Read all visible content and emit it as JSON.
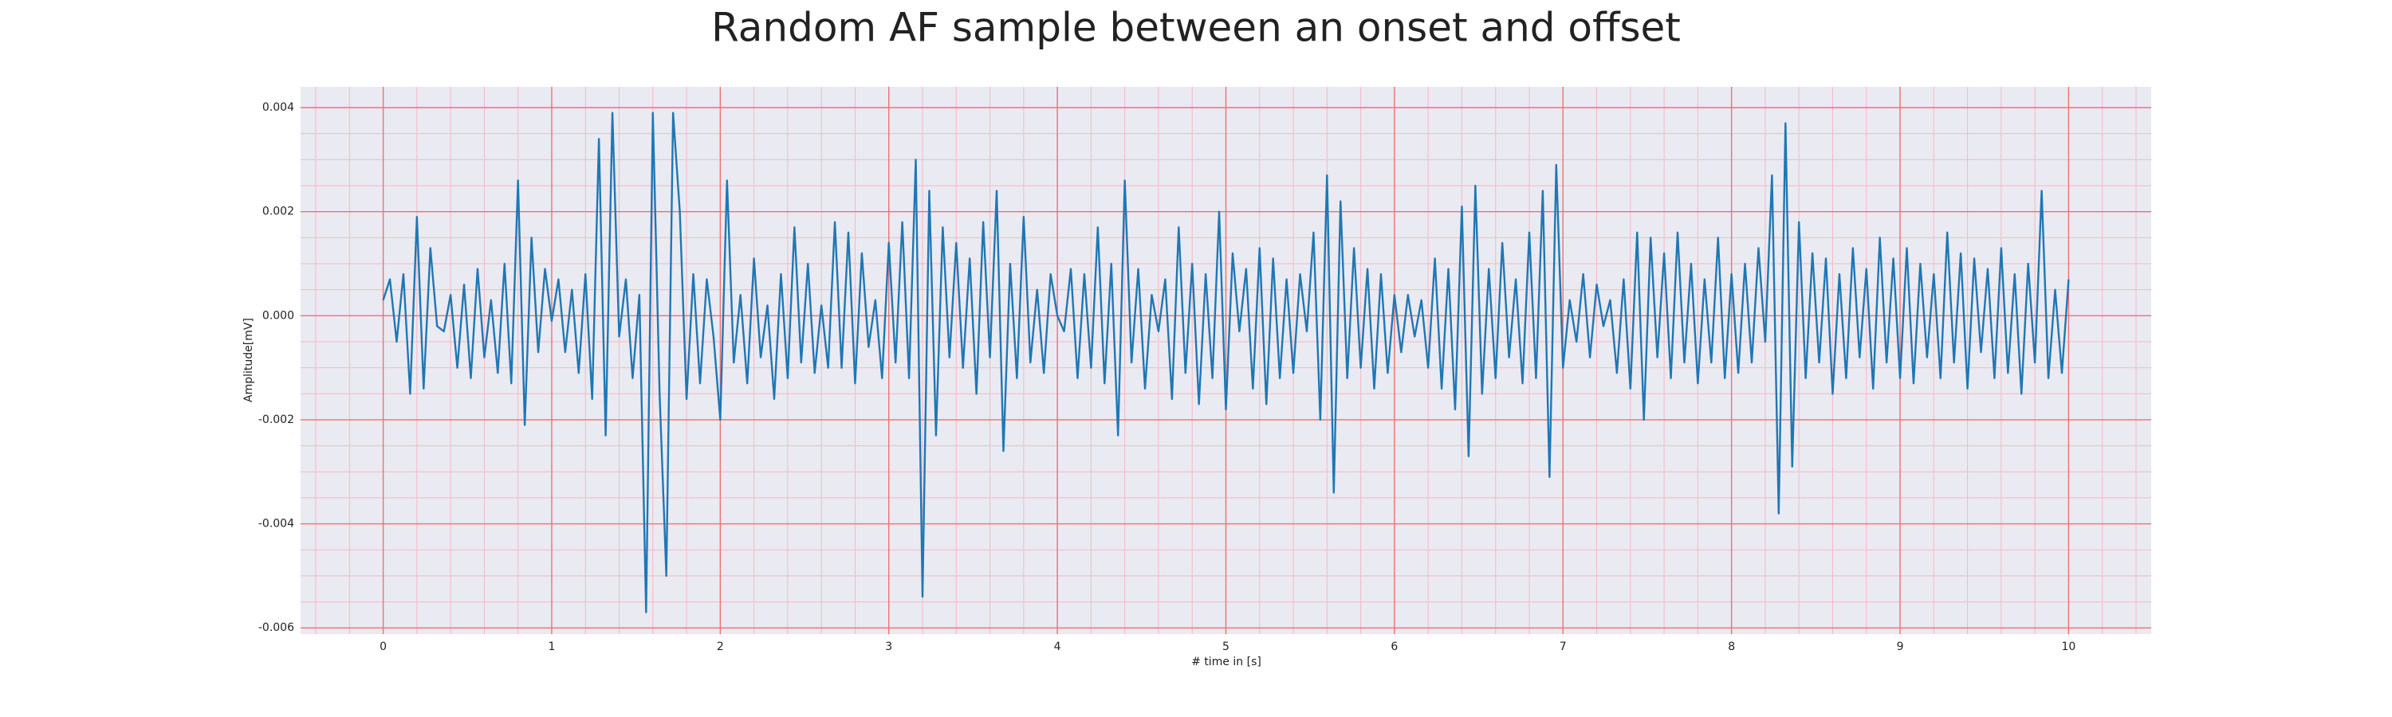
{
  "chart_data": {
    "type": "line",
    "title": "Random AF sample between an onset and offset",
    "xlabel": "# time in [s]",
    "ylabel": "Amplitude[mV]",
    "color": "#1f77b4",
    "grid": true,
    "xlim": [
      -0.49,
      10.49
    ],
    "ylim": [
      -0.00612,
      0.0044
    ],
    "xticks": [
      0,
      1,
      2,
      3,
      4,
      5,
      6,
      7,
      8,
      9,
      10
    ],
    "yticks": [
      -0.006,
      -0.004,
      -0.002,
      {
        "value": 0,
        "label": "0.000"
      },
      0.002,
      0.004
    ],
    "x": [
      0,
      0.04,
      0.08,
      0.12,
      0.16,
      0.2,
      0.24,
      0.28,
      0.32,
      0.36,
      0.4,
      0.44,
      0.48,
      0.52,
      0.56,
      0.6,
      0.64,
      0.68,
      0.72,
      0.76,
      0.8,
      0.84,
      0.88,
      0.92,
      0.96,
      1,
      1.04,
      1.08,
      1.12,
      1.16,
      1.2,
      1.24,
      1.28,
      1.32,
      1.36,
      1.4,
      1.44,
      1.48,
      1.52,
      1.56,
      1.6,
      1.64,
      1.68,
      1.72,
      1.76,
      1.8,
      1.84,
      1.88,
      1.92,
      1.96,
      2,
      2.04,
      2.08,
      2.12,
      2.16,
      2.2,
      2.24,
      2.28,
      2.32,
      2.36,
      2.4,
      2.44,
      2.48,
      2.52,
      2.56,
      2.6,
      2.64,
      2.68,
      2.72,
      2.76,
      2.8,
      2.84,
      2.88,
      2.92,
      2.96,
      3,
      3.04,
      3.08,
      3.12,
      3.16,
      3.2,
      3.24,
      3.28,
      3.32,
      3.36,
      3.4,
      3.44,
      3.48,
      3.52,
      3.56,
      3.6,
      3.64,
      3.68,
      3.72,
      3.76,
      3.8,
      3.84,
      3.88,
      3.92,
      3.96,
      4,
      4.04,
      4.08,
      4.12,
      4.16,
      4.2,
      4.24,
      4.28,
      4.32,
      4.36,
      4.4,
      4.44,
      4.48,
      4.52,
      4.56,
      4.6,
      4.64,
      4.68,
      4.72,
      4.76,
      4.8,
      4.84,
      4.88,
      4.92,
      4.96,
      5,
      5.04,
      5.08,
      5.12,
      5.16,
      5.2,
      5.24,
      5.28,
      5.32,
      5.36,
      5.4,
      5.44,
      5.48,
      5.52,
      5.56,
      5.6,
      5.64,
      5.68,
      5.72,
      5.76,
      5.8,
      5.84,
      5.88,
      5.92,
      5.96,
      6,
      6.04,
      6.08,
      6.12,
      6.16,
      6.2,
      6.24,
      6.28,
      6.32,
      6.36,
      6.4,
      6.44,
      6.48,
      6.52,
      6.56,
      6.6,
      6.64,
      6.68,
      6.72,
      6.76,
      6.8,
      6.84,
      6.88,
      6.92,
      6.96,
      7,
      7.04,
      7.08,
      7.12,
      7.16,
      7.2,
      7.24,
      7.28,
      7.32,
      7.36,
      7.4,
      7.44,
      7.48,
      7.52,
      7.56,
      7.6,
      7.64,
      7.68,
      7.72,
      7.76,
      7.8,
      7.84,
      7.88,
      7.92,
      7.96,
      8,
      8.04,
      8.08,
      8.12,
      8.16,
      8.2,
      8.24,
      8.28,
      8.32,
      8.36,
      8.4,
      8.44,
      8.48,
      8.52,
      8.56,
      8.6,
      8.64,
      8.68,
      8.72,
      8.76,
      8.8,
      8.84,
      8.88,
      8.92,
      8.96,
      9,
      9.04,
      9.08,
      9.12,
      9.16,
      9.2,
      9.24,
      9.28,
      9.32,
      9.36,
      9.4,
      9.44,
      9.48,
      9.52,
      9.56,
      9.6,
      9.64,
      9.68,
      9.72,
      9.76,
      9.8,
      9.84,
      9.88,
      9.92,
      9.96,
      10
    ],
    "values": [
      0.0003,
      0.0007,
      -0.0005,
      0.0008,
      -0.0015,
      0.0019,
      -0.0014,
      0.0013,
      -0.0002,
      -0.0003,
      0.0004,
      -0.001,
      0.0006,
      -0.0012,
      0.0009,
      -0.0008,
      0.0003,
      -0.0011,
      0.001,
      -0.0013,
      0.0026,
      -0.0021,
      0.0015,
      -0.0007,
      0.0009,
      -0.0001,
      0.0007,
      -0.0007,
      0.0005,
      -0.0011,
      0.0008,
      -0.0016,
      0.0034,
      -0.0023,
      0.0039,
      -0.0004,
      0.0007,
      -0.0012,
      0.0004,
      -0.0057,
      0.0039,
      -0.0015,
      -0.005,
      0.0039,
      0.002,
      -0.0016,
      0.0008,
      -0.0013,
      0.0007,
      -0.0004,
      -0.002,
      0.0026,
      -0.0009,
      0.0004,
      -0.0013,
      0.0011,
      -0.0008,
      0.0002,
      -0.0016,
      0.0008,
      -0.0012,
      0.0017,
      -0.0009,
      0.001,
      -0.0011,
      0.0002,
      -0.001,
      0.0018,
      -0.001,
      0.0016,
      -0.0013,
      0.0012,
      -0.0006,
      0.0003,
      -0.0012,
      0.0014,
      -0.0009,
      0.0018,
      -0.0012,
      0.003,
      -0.0054,
      0.0024,
      -0.0023,
      0.0017,
      -0.0008,
      0.0014,
      -0.001,
      0.0011,
      -0.0015,
      0.0018,
      -0.0008,
      0.0024,
      -0.0026,
      0.001,
      -0.0012,
      0.0019,
      -0.0009,
      0.0005,
      -0.0011,
      0.0008,
      0,
      -0.0003,
      0.0009,
      -0.0012,
      0.0008,
      -0.001,
      0.0017,
      -0.0013,
      0.001,
      -0.0023,
      0.0026,
      -0.0009,
      0.0009,
      -0.0014,
      0.0004,
      -0.0003,
      0.0007,
      -0.0016,
      0.0017,
      -0.0011,
      0.001,
      -0.0017,
      0.0008,
      -0.0012,
      0.002,
      -0.0018,
      0.0012,
      -0.0003,
      0.0009,
      -0.0014,
      0.0013,
      -0.0017,
      0.0011,
      -0.0012,
      0.0007,
      -0.0011,
      0.0008,
      -0.0003,
      0.0016,
      -0.002,
      0.0027,
      -0.0034,
      0.0022,
      -0.0012,
      0.0013,
      -0.001,
      0.0009,
      -0.0014,
      0.0008,
      -0.0011,
      0.0004,
      -0.0007,
      0.0004,
      -0.0004,
      0.0003,
      -0.001,
      0.0011,
      -0.0014,
      0.0009,
      -0.0018,
      0.0021,
      -0.0027,
      0.0025,
      -0.0015,
      0.0009,
      -0.0012,
      0.0014,
      -0.0008,
      0.0007,
      -0.0013,
      0.0016,
      -0.0012,
      0.0024,
      -0.0031,
      0.0029,
      -0.001,
      0.0003,
      -0.0005,
      0.0008,
      -0.0008,
      0.0006,
      -0.0002,
      0.0003,
      -0.0011,
      0.0007,
      -0.0014,
      0.0016,
      -0.002,
      0.0015,
      -0.0008,
      0.0012,
      -0.0012,
      0.0016,
      -0.0009,
      0.001,
      -0.0013,
      0.0007,
      -0.0009,
      0.0015,
      -0.0012,
      0.0008,
      -0.0011,
      0.001,
      -0.0009,
      0.0013,
      -0.0005,
      0.0027,
      -0.0038,
      0.0037,
      -0.0029,
      0.0018,
      -0.0012,
      0.0012,
      -0.0009,
      0.0011,
      -0.0015,
      0.0008,
      -0.0012,
      0.0013,
      -0.0008,
      0.0009,
      -0.0014,
      0.0015,
      -0.0009,
      0.0011,
      -0.0012,
      0.0013,
      -0.0013,
      0.001,
      -0.0008,
      0.0008,
      -0.0012,
      0.0016,
      -0.0009,
      0.0012,
      -0.0014,
      0.0011,
      -0.0007,
      0.0009,
      -0.0012,
      0.0013,
      -0.0011,
      0.0008,
      -0.0015,
      0.001,
      -0.0009,
      0.0024,
      -0.0012,
      0.0005,
      -0.0011,
      0.0007
    ]
  }
}
